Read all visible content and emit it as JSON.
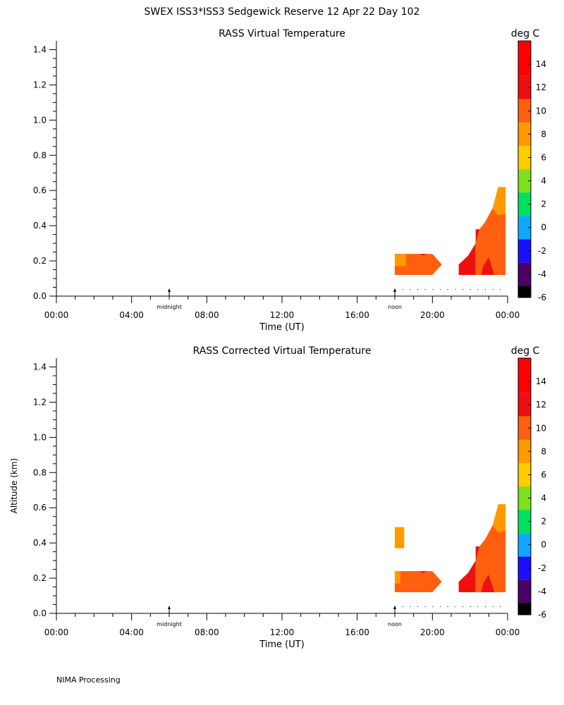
{
  "title": "SWEX ISS3*ISS3 Sedgewick Reserve  12 Apr 22 Day 102",
  "footer": "NIMA Processing",
  "chart_data": [
    {
      "type": "heatmap",
      "title": "RASS Virtual Temperature",
      "xlabel": "Time (UT)",
      "ylabel": "",
      "xlim": [
        0,
        24
      ],
      "ylim": [
        0,
        1.45
      ],
      "xticks": [
        "00:00",
        "04:00",
        "08:00",
        "12:00",
        "16:00",
        "20:00",
        "00:00"
      ],
      "yticks": [
        "0.0",
        "0.2",
        "0.4",
        "0.6",
        "0.8",
        "1.0",
        "1.2",
        "1.4"
      ],
      "markers": [
        {
          "label": "midnight",
          "x": 6.0
        },
        {
          "label": "noon",
          "x": 18.0
        }
      ],
      "colorbar": {
        "label": "deg C",
        "tick_labels": [
          "14",
          "12",
          "10",
          "8",
          "6",
          "4",
          "2",
          "0",
          "-2",
          "-4",
          "-6"
        ],
        "bins": [
          {
            "lo": -6,
            "hi": -5,
            "color": "#000000"
          },
          {
            "lo": -5,
            "hi": -3,
            "color": "#4b0066"
          },
          {
            "lo": -3,
            "hi": -1,
            "color": "#1a10ff"
          },
          {
            "lo": -1,
            "hi": 1,
            "color": "#10a8ff"
          },
          {
            "lo": 1,
            "hi": 3,
            "color": "#00e060"
          },
          {
            "lo": 3,
            "hi": 5,
            "color": "#80e020"
          },
          {
            "lo": 5,
            "hi": 7,
            "color": "#ffcc00"
          },
          {
            "lo": 7,
            "hi": 9,
            "color": "#ff9900"
          },
          {
            "lo": 9,
            "hi": 11,
            "color": "#ff6010"
          },
          {
            "lo": 11,
            "hi": 13,
            "color": "#ee1010"
          },
          {
            "lo": 13,
            "hi": 15,
            "color": "#ff0000"
          },
          {
            "lo": 15,
            "hi": 16,
            "color": "#ff0000"
          }
        ]
      },
      "regions": [
        {
          "value": 10,
          "color": "#ff6010",
          "points": [
            [
              18.0,
              0.12
            ],
            [
              20.0,
              0.12
            ],
            [
              20.5,
              0.18
            ],
            [
              20.0,
              0.24
            ],
            [
              18.0,
              0.24
            ]
          ]
        },
        {
          "value": 8,
          "color": "#ff9900",
          "points": [
            [
              18.0,
              0.17
            ],
            [
              18.6,
              0.17
            ],
            [
              18.6,
              0.24
            ],
            [
              18.0,
              0.24
            ]
          ]
        },
        {
          "value": 12,
          "color": "#ee1010",
          "points": [
            [
              19.3,
              0.24
            ],
            [
              19.7,
              0.24
            ],
            [
              19.5,
              0.23
            ]
          ]
        },
        {
          "value": 12,
          "color": "#ee1010",
          "points": [
            [
              21.4,
              0.12
            ],
            [
              23.0,
              0.12
            ],
            [
              23.0,
              0.22
            ],
            [
              22.3,
              0.3
            ],
            [
              22.3,
              0.38
            ],
            [
              22.8,
              0.38
            ],
            [
              22.8,
              0.12
            ]
          ]
        },
        {
          "value": 12,
          "color": "#ee1010",
          "points": [
            [
              21.4,
              0.12
            ],
            [
              21.4,
              0.18
            ],
            [
              21.9,
              0.23
            ],
            [
              22.3,
              0.3
            ],
            [
              22.3,
              0.12
            ]
          ]
        },
        {
          "value": 10,
          "color": "#ff6010",
          "points": [
            [
              22.8,
              0.12
            ],
            [
              23.9,
              0.12
            ],
            [
              23.9,
              0.47
            ],
            [
              23.2,
              0.5
            ],
            [
              22.8,
              0.42
            ]
          ]
        },
        {
          "value": 10,
          "color": "#ff6010",
          "points": [
            [
              22.3,
              0.12
            ],
            [
              22.8,
              0.12
            ],
            [
              22.8,
              0.42
            ],
            [
              22.5,
              0.38
            ],
            [
              22.3,
              0.3
            ]
          ]
        },
        {
          "value": 8,
          "color": "#ff9900",
          "points": [
            [
              23.2,
              0.5
            ],
            [
              23.5,
              0.62
            ],
            [
              23.9,
              0.62
            ],
            [
              23.9,
              0.47
            ],
            [
              23.5,
              0.46
            ]
          ]
        },
        {
          "value": 12,
          "color": "#ee1010",
          "points": [
            [
              22.6,
              0.12
            ],
            [
              23.3,
              0.12
            ],
            [
              23.0,
              0.22
            ],
            [
              22.7,
              0.17
            ]
          ]
        }
      ]
    },
    {
      "type": "heatmap",
      "title": "RASS Corrected Virtual Temperature",
      "xlabel": "Time (UT)",
      "ylabel": "Altitude (km)",
      "xlim": [
        0,
        24
      ],
      "ylim": [
        0,
        1.45
      ],
      "xticks": [
        "00:00",
        "04:00",
        "08:00",
        "12:00",
        "16:00",
        "20:00",
        "00:00"
      ],
      "yticks": [
        "0.0",
        "0.2",
        "0.4",
        "0.6",
        "0.8",
        "1.0",
        "1.2",
        "1.4"
      ],
      "markers": [
        {
          "label": "midnight",
          "x": 6.0
        },
        {
          "label": "noon",
          "x": 18.0
        }
      ],
      "colorbar": {
        "label": "deg C",
        "tick_labels": [
          "14",
          "12",
          "10",
          "8",
          "6",
          "4",
          "2",
          "0",
          "-2",
          "-4",
          "-6"
        ],
        "bins": [
          {
            "lo": -6,
            "hi": -5,
            "color": "#000000"
          },
          {
            "lo": -5,
            "hi": -3,
            "color": "#4b0066"
          },
          {
            "lo": -3,
            "hi": -1,
            "color": "#1a10ff"
          },
          {
            "lo": -1,
            "hi": 1,
            "color": "#10a8ff"
          },
          {
            "lo": 1,
            "hi": 3,
            "color": "#00e060"
          },
          {
            "lo": 3,
            "hi": 5,
            "color": "#80e020"
          },
          {
            "lo": 5,
            "hi": 7,
            "color": "#ffcc00"
          },
          {
            "lo": 7,
            "hi": 9,
            "color": "#ff9900"
          },
          {
            "lo": 9,
            "hi": 11,
            "color": "#ff6010"
          },
          {
            "lo": 11,
            "hi": 13,
            "color": "#ee1010"
          },
          {
            "lo": 13,
            "hi": 15,
            "color": "#ff0000"
          },
          {
            "lo": 15,
            "hi": 16,
            "color": "#ff0000"
          }
        ]
      },
      "regions": [
        {
          "value": 8,
          "color": "#ff9900",
          "points": [
            [
              18.0,
              0.37
            ],
            [
              18.5,
              0.37
            ],
            [
              18.5,
              0.49
            ],
            [
              18.0,
              0.49
            ]
          ]
        },
        {
          "value": 10,
          "color": "#ff6010",
          "points": [
            [
              18.0,
              0.12
            ],
            [
              20.0,
              0.12
            ],
            [
              20.5,
              0.18
            ],
            [
              20.0,
              0.24
            ],
            [
              18.0,
              0.24
            ]
          ]
        },
        {
          "value": 8,
          "color": "#ff9900",
          "points": [
            [
              18.0,
              0.17
            ],
            [
              18.3,
              0.17
            ],
            [
              18.3,
              0.24
            ],
            [
              18.0,
              0.24
            ]
          ]
        },
        {
          "value": 12,
          "color": "#ee1010",
          "points": [
            [
              19.3,
              0.24
            ],
            [
              19.7,
              0.24
            ],
            [
              19.5,
              0.23
            ]
          ]
        },
        {
          "value": 12,
          "color": "#ee1010",
          "points": [
            [
              21.4,
              0.12
            ],
            [
              23.0,
              0.12
            ],
            [
              23.0,
              0.22
            ],
            [
              22.3,
              0.3
            ],
            [
              22.3,
              0.38
            ],
            [
              22.8,
              0.38
            ],
            [
              22.8,
              0.12
            ]
          ]
        },
        {
          "value": 12,
          "color": "#ee1010",
          "points": [
            [
              21.4,
              0.12
            ],
            [
              21.4,
              0.18
            ],
            [
              21.9,
              0.23
            ],
            [
              22.3,
              0.3
            ],
            [
              22.3,
              0.12
            ]
          ]
        },
        {
          "value": 10,
          "color": "#ff6010",
          "points": [
            [
              22.8,
              0.12
            ],
            [
              23.9,
              0.12
            ],
            [
              23.9,
              0.47
            ],
            [
              23.2,
              0.5
            ],
            [
              22.8,
              0.42
            ]
          ]
        },
        {
          "value": 10,
          "color": "#ff6010",
          "points": [
            [
              22.3,
              0.12
            ],
            [
              22.8,
              0.12
            ],
            [
              22.8,
              0.42
            ],
            [
              22.5,
              0.38
            ],
            [
              22.3,
              0.3
            ]
          ]
        },
        {
          "value": 8,
          "color": "#ff9900",
          "points": [
            [
              23.2,
              0.5
            ],
            [
              23.5,
              0.62
            ],
            [
              23.9,
              0.62
            ],
            [
              23.9,
              0.47
            ],
            [
              23.5,
              0.46
            ]
          ]
        },
        {
          "value": 12,
          "color": "#ee1010",
          "points": [
            [
              22.6,
              0.12
            ],
            [
              23.3,
              0.12
            ],
            [
              23.0,
              0.22
            ],
            [
              22.7,
              0.17
            ]
          ]
        }
      ]
    }
  ]
}
